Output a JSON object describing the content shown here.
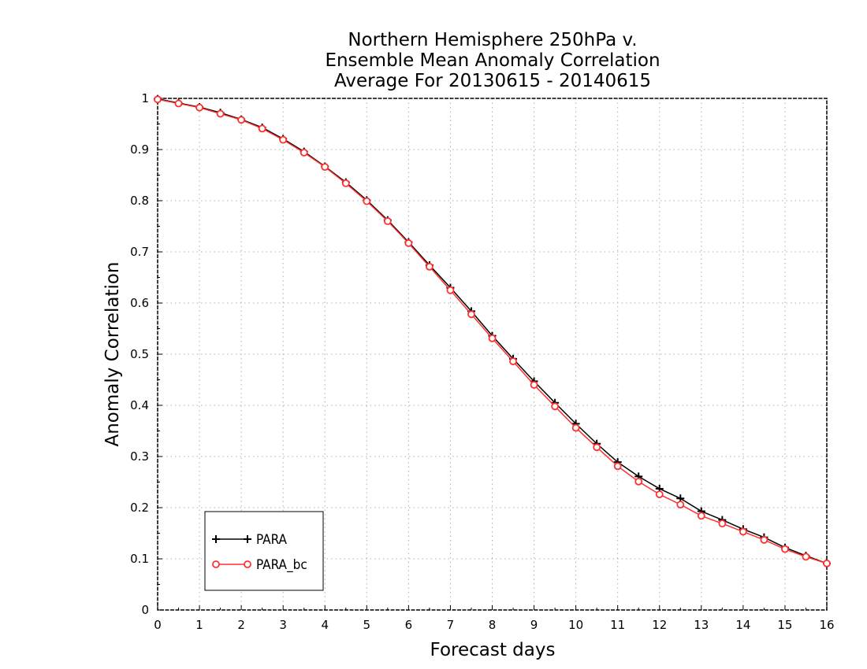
{
  "chart_data": {
    "type": "line",
    "title_lines": [
      "Northern Hemisphere 250hPa v.",
      "Ensemble Mean Anomaly Correlation",
      "Average For 20130615 - 20140615"
    ],
    "xlabel": "Forecast days",
    "ylabel": "Anomaly Correlation",
    "xlim": [
      0,
      16
    ],
    "ylim": [
      0,
      1
    ],
    "x_ticks": [
      "0",
      "1",
      "2",
      "3",
      "4",
      "5",
      "6",
      "7",
      "8",
      "9",
      "10",
      "11",
      "12",
      "13",
      "14",
      "15",
      "16"
    ],
    "y_ticks": [
      "0",
      "0.1",
      "0.2",
      "0.3",
      "0.4",
      "0.5",
      "0.6",
      "0.7",
      "0.8",
      "0.9",
      "1"
    ],
    "grid": true,
    "legend_position": "bottom-left",
    "x": [
      0,
      0.5,
      1,
      1.5,
      2,
      2.5,
      3,
      3.5,
      4,
      4.5,
      5,
      5.5,
      6,
      6.5,
      7,
      7.5,
      8,
      8.5,
      9,
      9.5,
      10,
      10.5,
      11,
      11.5,
      12,
      12.5,
      13,
      13.5,
      14,
      14.5,
      15,
      15.5,
      16
    ],
    "series": [
      {
        "name": "PARA",
        "color": "#000000",
        "marker": "plus",
        "values": [
          0.999,
          0.991,
          0.983,
          0.972,
          0.959,
          0.943,
          0.921,
          0.896,
          0.867,
          0.836,
          0.801,
          0.762,
          0.719,
          0.674,
          0.63,
          0.584,
          0.536,
          0.491,
          0.447,
          0.405,
          0.364,
          0.325,
          0.289,
          0.261,
          0.237,
          0.218,
          0.193,
          0.176,
          0.158,
          0.142,
          0.122,
          0.106,
          0.091
        ]
      },
      {
        "name": "PARA_bc",
        "color": "#ff3030",
        "marker": "circle",
        "values": [
          0.998,
          0.99,
          0.982,
          0.97,
          0.958,
          0.941,
          0.919,
          0.894,
          0.866,
          0.834,
          0.799,
          0.76,
          0.717,
          0.671,
          0.625,
          0.578,
          0.531,
          0.486,
          0.44,
          0.398,
          0.356,
          0.318,
          0.281,
          0.251,
          0.226,
          0.206,
          0.184,
          0.169,
          0.153,
          0.137,
          0.119,
          0.104,
          0.091
        ]
      }
    ]
  }
}
